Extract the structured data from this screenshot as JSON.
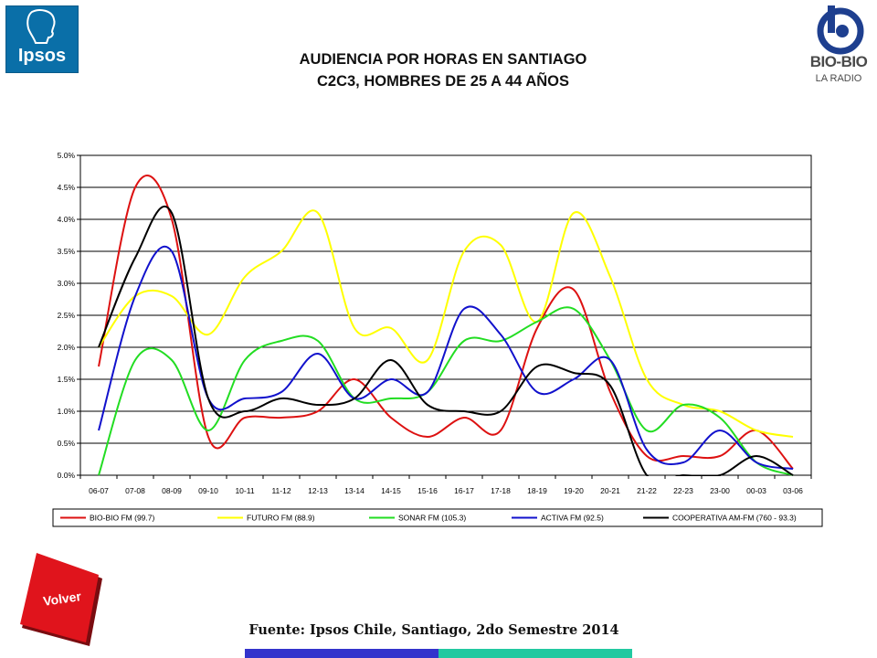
{
  "header": {
    "title_line1": "AUDIENCIA POR HORAS EN SANTIAGO",
    "title_line2": "C2C3, HOMBRES DE 25 A 44 AÑOS"
  },
  "logos": {
    "left": "Ipsos",
    "right_name": "BIO-BIO",
    "right_sub": "LA RADIO"
  },
  "nav": {
    "volver_label": "Volver"
  },
  "footer": {
    "source": "Fuente: Ipsos Chile, Santiago, 2do Semestre 2014",
    "bar_colors": [
      "#3333cc",
      "#22c9a0"
    ]
  },
  "colors": {
    "ipsos_blue": "#0a6fa8",
    "volver_red": "#e0141c"
  },
  "chart_data": {
    "type": "line",
    "categories": [
      "06-07",
      "07-08",
      "08-09",
      "09-10",
      "10-11",
      "11-12",
      "12-13",
      "13-14",
      "14-15",
      "15-16",
      "16-17",
      "17-18",
      "18-19",
      "19-20",
      "20-21",
      "21-22",
      "22-23",
      "23-00",
      "00-03",
      "03-06"
    ],
    "ylim": [
      0,
      5
    ],
    "y_ticks": [
      "0.0%",
      "0.5%",
      "1.0%",
      "1.5%",
      "2.0%",
      "2.5%",
      "3.0%",
      "3.5%",
      "4.0%",
      "4.5%",
      "5.0%"
    ],
    "grid": true,
    "legend_position": "bottom",
    "series": [
      {
        "name": "BIO-BIO FM (99.7)",
        "color": "#dd1111",
        "values": [
          1.7,
          4.5,
          4.0,
          0.6,
          0.9,
          0.9,
          1.0,
          1.5,
          0.9,
          0.6,
          0.9,
          0.7,
          2.3,
          2.9,
          1.3,
          0.3,
          0.3,
          0.3,
          0.7,
          0.1
        ]
      },
      {
        "name": "FUTURO FM (88.9)",
        "color": "#ffff00",
        "values": [
          2.0,
          2.8,
          2.8,
          2.2,
          3.1,
          3.5,
          4.1,
          2.3,
          2.3,
          1.8,
          3.5,
          3.6,
          2.4,
          4.1,
          3.1,
          1.5,
          1.1,
          1.0,
          0.7,
          0.6
        ]
      },
      {
        "name": "SONAR FM (105.3)",
        "color": "#22dd22",
        "values": [
          0.0,
          1.8,
          1.8,
          0.7,
          1.8,
          2.1,
          2.1,
          1.2,
          1.2,
          1.3,
          2.1,
          2.1,
          2.4,
          2.6,
          1.8,
          0.7,
          1.1,
          0.9,
          0.2,
          0.0
        ]
      },
      {
        "name": "ACTIVA FM (92.5)",
        "color": "#1111cc",
        "values": [
          0.7,
          2.8,
          3.5,
          1.2,
          1.2,
          1.3,
          1.9,
          1.2,
          1.5,
          1.3,
          2.6,
          2.2,
          1.3,
          1.5,
          1.8,
          0.4,
          0.2,
          0.7,
          0.2,
          0.1
        ]
      },
      {
        "name": "COOPERATIVA AM-FM (760 - 93.3)",
        "color": "#000000",
        "values": [
          2.0,
          3.4,
          4.1,
          1.2,
          1.0,
          1.2,
          1.1,
          1.2,
          1.8,
          1.1,
          1.0,
          1.0,
          1.7,
          1.6,
          1.4,
          0.0,
          0.0,
          0.0,
          0.3,
          0.0
        ]
      }
    ]
  }
}
